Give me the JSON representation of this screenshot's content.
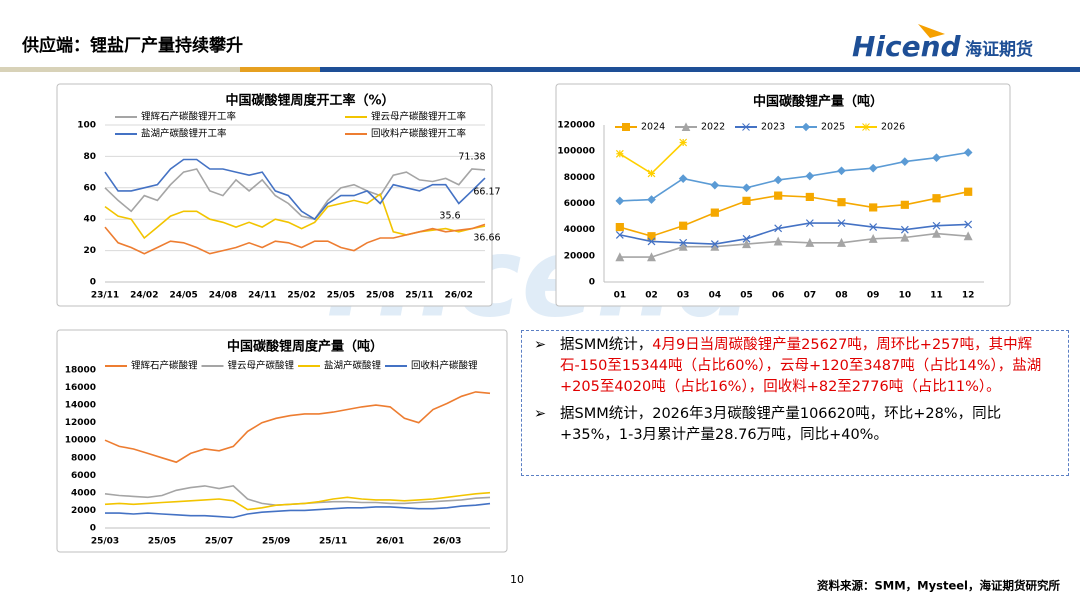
{
  "header": {
    "title": "供应端：锂盐厂产量持续攀升"
  },
  "logo": {
    "brand": "Hicend",
    "name": "海证期货"
  },
  "watermark": "Hicend",
  "chart_data": [
    {
      "type": "line",
      "title": "中国碳酸锂周度开工率（%）",
      "categories": [
        "23/11",
        null,
        null,
        "24/02",
        null,
        null,
        "24/05",
        null,
        null,
        "24/08",
        null,
        null,
        "24/11",
        null,
        null,
        "25/02",
        null,
        null,
        "25/05",
        null,
        null,
        "25/08",
        null,
        null,
        "25/11",
        null,
        null,
        "26/02",
        null,
        null
      ],
      "series": [
        {
          "name": "锂辉石产碳酸锂开工率",
          "color": "#a5a5a5",
          "values": [
            60,
            52,
            45,
            55,
            52,
            62,
            70,
            72,
            58,
            55,
            65,
            58,
            65,
            55,
            50,
            42,
            40,
            52,
            60,
            62,
            58,
            55,
            68,
            70,
            65,
            64,
            66,
            62,
            72,
            71.38
          ]
        },
        {
          "name": "锂云母产碳酸锂开工率",
          "color": "#f2c400",
          "values": [
            48,
            42,
            40,
            28,
            35,
            42,
            45,
            45,
            40,
            38,
            35,
            38,
            35,
            40,
            38,
            34,
            38,
            48,
            50,
            52,
            50,
            56,
            32,
            30,
            32,
            33,
            34,
            32,
            34,
            35.6
          ]
        },
        {
          "name": "盐湖产碳酸锂开工率",
          "color": "#4472c4",
          "values": [
            70,
            58,
            58,
            60,
            62,
            72,
            78,
            78,
            72,
            72,
            70,
            68,
            70,
            58,
            55,
            45,
            40,
            50,
            55,
            55,
            58,
            50,
            62,
            60,
            58,
            62,
            62,
            50,
            58,
            66.17
          ]
        },
        {
          "name": "回收料产碳酸锂开工率",
          "color": "#ed7d31",
          "values": [
            35,
            25,
            22,
            18,
            22,
            26,
            25,
            22,
            18,
            20,
            22,
            25,
            22,
            26,
            25,
            22,
            26,
            26,
            22,
            20,
            25,
            28,
            28,
            30,
            32,
            34,
            32,
            33,
            34,
            36.66
          ]
        }
      ],
      "annotations": [
        "71.38",
        "66.17",
        "35.6",
        "36.66"
      ],
      "ylim": [
        0,
        100
      ],
      "yticks": [
        0,
        20,
        40,
        60,
        80,
        100
      ],
      "grid": true
    },
    {
      "type": "line",
      "title": "中国碳酸锂产量（吨）",
      "categories": [
        "01",
        "02",
        "03",
        "04",
        "05",
        "06",
        "07",
        "08",
        "09",
        "10",
        "11",
        "12"
      ],
      "series": [
        {
          "name": "2024",
          "color": "#f5a800",
          "marker": "square",
          "values": [
            42000,
            35000,
            43000,
            53000,
            62000,
            66000,
            65000,
            61000,
            57000,
            59000,
            64000,
            69000
          ]
        },
        {
          "name": "2022",
          "color": "#a5a5a5",
          "marker": "triangle",
          "values": [
            19000,
            19000,
            27000,
            27000,
            29000,
            31000,
            30000,
            30000,
            33000,
            34000,
            37000,
            35000
          ]
        },
        {
          "name": "2023",
          "color": "#4472c4",
          "marker": "x",
          "values": [
            36000,
            31000,
            30000,
            29000,
            33000,
            41000,
            45000,
            45000,
            42000,
            40000,
            43000,
            44000
          ]
        },
        {
          "name": "2025",
          "color": "#5b9bd5",
          "marker": "diamond",
          "values": [
            62000,
            63000,
            79000,
            74000,
            72000,
            78000,
            81000,
            85000,
            87000,
            92000,
            95000,
            99000
          ]
        },
        {
          "name": "2026",
          "color": "#ffd000",
          "marker": "star",
          "values": [
            98000,
            83000,
            106620,
            null,
            null,
            null,
            null,
            null,
            null,
            null,
            null,
            null
          ]
        }
      ],
      "ylim": [
        0,
        120000
      ],
      "yticks": [
        0,
        20000,
        40000,
        60000,
        80000,
        100000,
        120000
      ],
      "grid": false
    },
    {
      "type": "line",
      "title": "中国碳酸锂周度产量（吨）",
      "categories": [
        "25/03",
        null,
        null,
        null,
        "25/05",
        null,
        null,
        null,
        "25/07",
        null,
        null,
        null,
        "25/09",
        null,
        null,
        null,
        "25/11",
        null,
        null,
        null,
        "26/01",
        null,
        null,
        null,
        "26/03",
        null,
        null,
        null
      ],
      "series": [
        {
          "name": "锂辉石产碳酸锂",
          "color": "#ed7d31",
          "values": [
            10000,
            9300,
            9000,
            8500,
            8000,
            7500,
            8500,
            9000,
            8800,
            9300,
            11000,
            12000,
            12500,
            12800,
            13000,
            13000,
            13200,
            13500,
            13800,
            14000,
            13800,
            12500,
            12000,
            13500,
            14200,
            15000,
            15500,
            15344
          ]
        },
        {
          "name": "锂云母产碳酸锂",
          "color": "#a5a5a5",
          "values": [
            3900,
            3700,
            3600,
            3500,
            3700,
            4300,
            4600,
            4800,
            4500,
            4800,
            3300,
            2800,
            2600,
            2700,
            2800,
            2900,
            3000,
            3000,
            2900,
            2900,
            2800,
            2800,
            2900,
            3000,
            3100,
            3200,
            3400,
            3487
          ]
        },
        {
          "name": "盐湖产碳酸锂",
          "color": "#f2c400",
          "values": [
            2700,
            2800,
            2700,
            2800,
            2900,
            3000,
            3100,
            3200,
            3300,
            3100,
            2100,
            2300,
            2600,
            2700,
            2800,
            3000,
            3300,
            3500,
            3300,
            3200,
            3200,
            3100,
            3200,
            3300,
            3500,
            3700,
            3900,
            4020
          ]
        },
        {
          "name": "回收料产碳酸锂",
          "color": "#4472c4",
          "values": [
            1700,
            1700,
            1600,
            1700,
            1600,
            1500,
            1400,
            1400,
            1300,
            1200,
            1600,
            1800,
            1900,
            2000,
            2000,
            2100,
            2200,
            2300,
            2300,
            2400,
            2400,
            2300,
            2200,
            2200,
            2300,
            2500,
            2600,
            2776
          ]
        }
      ],
      "ylim": [
        0,
        18000
      ],
      "yticks": [
        0,
        2000,
        4000,
        6000,
        8000,
        10000,
        12000,
        14000,
        16000,
        18000
      ],
      "grid": false
    }
  ],
  "text_box": {
    "bullets": [
      {
        "segments": [
          {
            "text": "据SMM统计，",
            "color": "#000000"
          },
          {
            "text": "4月9日当周碳酸锂产量25627吨，周环比+257吨，其中辉石-150至15344吨（占比60%），云母+120至3487吨（占比14%），盐湖+205至4020吨（占比16%），回收料+82至2776吨（占比11%）。",
            "color": "#e00000"
          }
        ]
      },
      {
        "segments": [
          {
            "text": "据SMM统计，2026年3月碳酸锂产量106620吨，环比+28%，同比+35%，1-3月累计产量28.76万吨，同比+40%。",
            "color": "#000000"
          }
        ]
      }
    ]
  },
  "page_number": "10",
  "footer": {
    "source": "资料来源：SMM，Mysteel，海证期货研究所"
  }
}
